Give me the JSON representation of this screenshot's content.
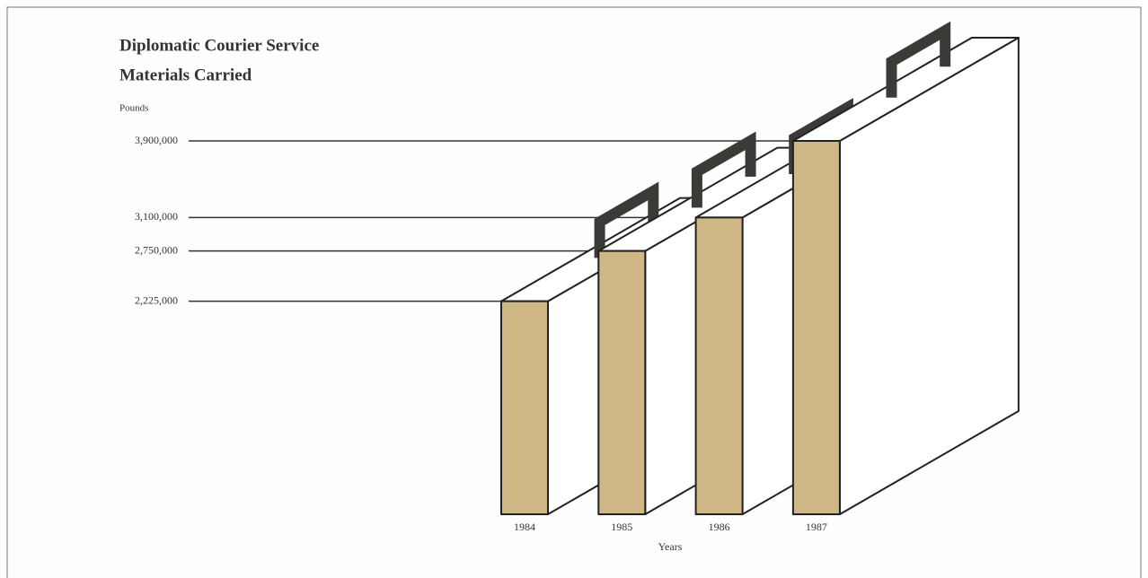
{
  "chart_data": {
    "type": "bar",
    "title": [
      "Diplomatic Courier Service",
      "Materials Carried"
    ],
    "y_label": "Pounds",
    "x_label": "Years",
    "categories": [
      "1984",
      "1985",
      "1986",
      "1987"
    ],
    "values": [
      2225000,
      2750000,
      3100000,
      3900000
    ],
    "color": "#cfb886",
    "handle_color": "#3b3a36",
    "ylim": [
      0,
      3900000
    ],
    "yticks": [
      {
        "value": 2225000,
        "label": "2,225,000"
      },
      {
        "value": 2750000,
        "label": "2,750,000"
      },
      {
        "value": 3100000,
        "label": "3,100,000"
      },
      {
        "value": 3900000,
        "label": "3,900,000"
      }
    ],
    "grid": true
  }
}
